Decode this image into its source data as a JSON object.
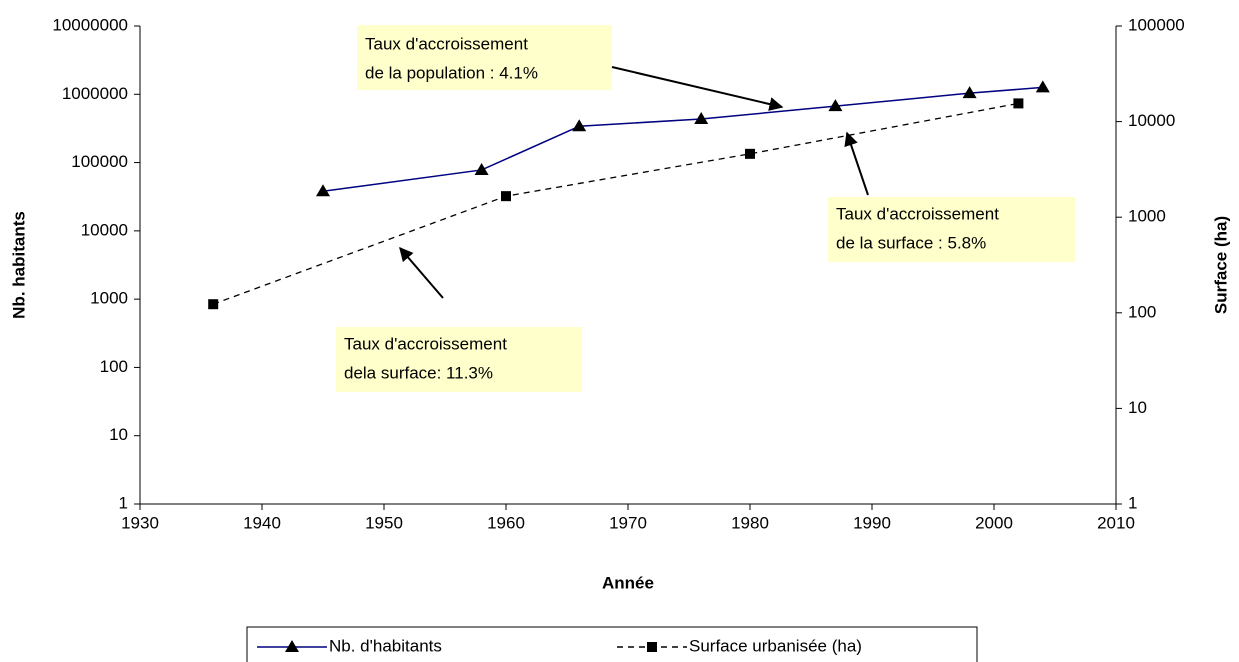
{
  "chart_data": {
    "type": "line",
    "x_label": "Année",
    "y_label": "Nb. habitants",
    "y2_label": "Surface (ha)",
    "xlim": [
      1930,
      2010
    ],
    "xticks": [
      1930,
      1940,
      1950,
      1960,
      1970,
      1980,
      1990,
      2000,
      2010
    ],
    "ylim": [
      1,
      10000000
    ],
    "yticks": [
      1,
      10,
      100,
      1000,
      10000,
      100000,
      1000000,
      10000000
    ],
    "y2lim": [
      1,
      100000
    ],
    "y2ticks": [
      1,
      10,
      100,
      1000,
      10000,
      100000
    ],
    "log_scale": true,
    "series": [
      {
        "name": "Nb. d'habitants",
        "color": "#000080",
        "marker": "triangle",
        "dashed": false,
        "x": [
          1945,
          1958,
          1966,
          1976,
          1987,
          1998,
          2004
        ],
        "values": [
          38000,
          78000,
          340000,
          435000,
          670000,
          1040000,
          1260000
        ]
      },
      {
        "name": "Surface urbanisée (ha)",
        "color": "#000000",
        "marker": "square",
        "dashed": true,
        "axis": "y2",
        "x": [
          1936,
          1960,
          1980,
          2002
        ],
        "values": [
          123,
          1660,
          4600,
          15500
        ]
      }
    ],
    "annotations": [
      {
        "lines": [
          "Taux d'accroissement",
          "de la population : 4.1%"
        ]
      },
      {
        "lines": [
          "Taux d'accroissement",
          "de la surface : 5.8%"
        ]
      },
      {
        "lines": [
          "Taux d'accroissement",
          "dela surface: 11.3%"
        ]
      }
    ],
    "legend": "bottom"
  }
}
